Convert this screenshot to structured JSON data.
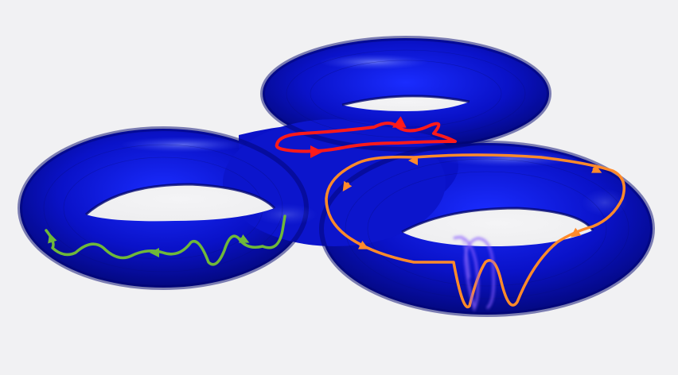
{
  "scene": {
    "background_color": "#f1f1f3",
    "surface_color": "#0a12c8",
    "surface_highlight_color": "#6a7cff",
    "surface_shadow_color": "#02055a",
    "genus": 3
  },
  "curves": [
    {
      "name": "red-curve",
      "color": "#ff1a1a",
      "arrows": 2
    },
    {
      "name": "orange-curve",
      "color": "#ff8a2a",
      "arrows": 5
    },
    {
      "name": "green-curve",
      "color": "#6fb83a",
      "arrows": 3
    },
    {
      "name": "purple-curve",
      "color": "#8a5cff",
      "arrows": 0
    }
  ]
}
